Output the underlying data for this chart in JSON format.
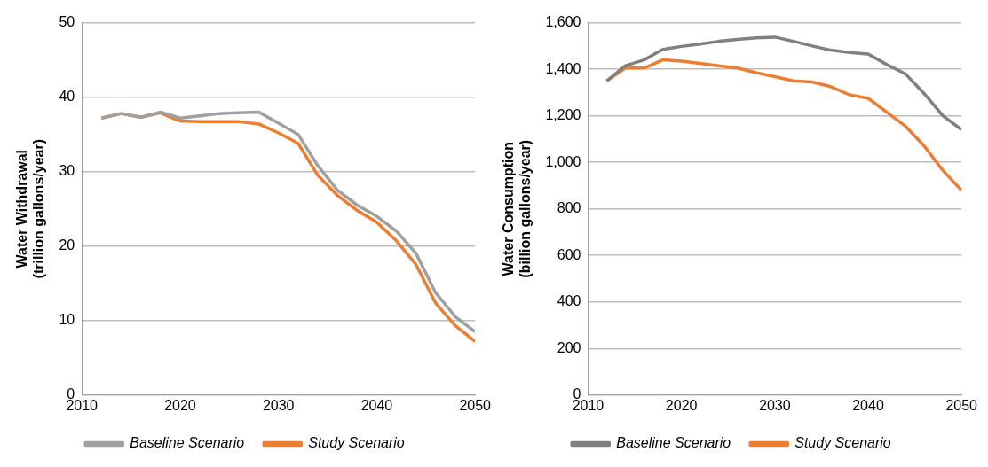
{
  "chart_data": [
    {
      "type": "line",
      "ylabel": "Water Withdrawal\n(trillion gallons/year)",
      "x": [
        2012,
        2014,
        2016,
        2018,
        2020,
        2022,
        2024,
        2026,
        2028,
        2030,
        2032,
        2034,
        2036,
        2038,
        2040,
        2042,
        2044,
        2046,
        2048,
        2050
      ],
      "xlim": [
        2010,
        2050
      ],
      "xticks": [
        2010,
        2020,
        2030,
        2040,
        2050
      ],
      "ylim": [
        0,
        50
      ],
      "yticks": [
        0,
        10,
        20,
        30,
        40,
        50
      ],
      "grid": "y",
      "legend": "bottom",
      "marker": "none",
      "series": [
        {
          "name": "Baseline Scenario",
          "color": "#a0a0a0",
          "values": [
            37.2,
            37.8,
            37.3,
            38.0,
            37.2,
            37.5,
            37.8,
            37.9,
            38.0,
            36.5,
            35.0,
            30.8,
            27.5,
            25.5,
            24.0,
            22.0,
            19.0,
            13.7,
            10.5,
            8.5
          ]
        },
        {
          "name": "Study Scenario",
          "color": "#ed7d31",
          "values": [
            37.2,
            37.8,
            37.3,
            37.9,
            36.8,
            36.7,
            36.7,
            36.7,
            36.4,
            35.2,
            33.8,
            29.5,
            26.8,
            24.8,
            23.2,
            20.7,
            17.5,
            12.3,
            9.3,
            7.2
          ]
        }
      ]
    },
    {
      "type": "line",
      "ylabel": "Water Consumption\n(billion gallons/year)",
      "x": [
        2012,
        2014,
        2016,
        2018,
        2020,
        2022,
        2024,
        2026,
        2028,
        2030,
        2032,
        2034,
        2036,
        2038,
        2040,
        2042,
        2044,
        2046,
        2048,
        2050
      ],
      "xlim": [
        2010,
        2050
      ],
      "xticks": [
        2010,
        2020,
        2030,
        2040,
        2050
      ],
      "ylim": [
        0,
        1600
      ],
      "yticks": [
        {
          "value": 0,
          "label": "0"
        },
        {
          "value": 200,
          "label": "200"
        },
        {
          "value": 400,
          "label": "400"
        },
        {
          "value": 600,
          "label": "600"
        },
        {
          "value": 800,
          "label": "800"
        },
        {
          "value": 1000,
          "label": "1,000"
        },
        {
          "value": 1200,
          "label": "1,200"
        },
        {
          "value": 1400,
          "label": "1,400"
        },
        {
          "value": 1600,
          "label": "1,600"
        }
      ],
      "grid": "y",
      "legend": "bottom",
      "marker": "none",
      "series": [
        {
          "name": "Baseline Scenario",
          "color": "#808080",
          "values": [
            1350,
            1415,
            1440,
            1485,
            1498,
            1508,
            1520,
            1528,
            1535,
            1538,
            1520,
            1500,
            1482,
            1472,
            1465,
            1420,
            1380,
            1295,
            1200,
            1140
          ]
        },
        {
          "name": "Study Scenario",
          "color": "#ed7d31",
          "values": [
            1350,
            1405,
            1405,
            1440,
            1435,
            1425,
            1415,
            1405,
            1385,
            1368,
            1350,
            1345,
            1325,
            1290,
            1275,
            1215,
            1155,
            1070,
            965,
            880
          ]
        }
      ]
    }
  ]
}
